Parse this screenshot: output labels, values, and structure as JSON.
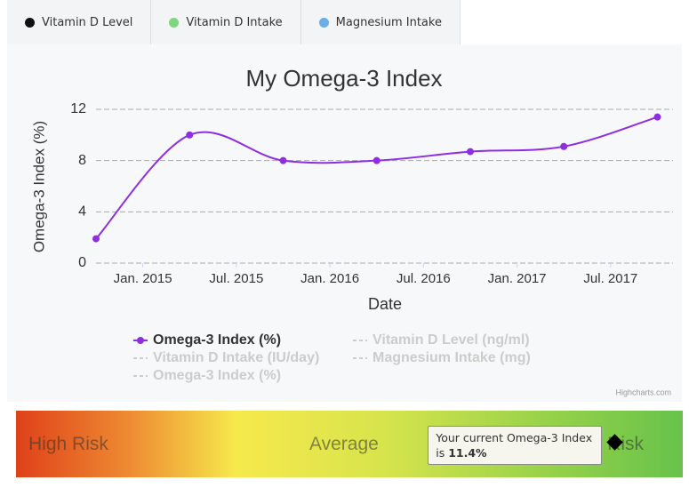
{
  "tabs": [
    {
      "label": "Vitamin D Level",
      "color": "#111111"
    },
    {
      "label": "Vitamin D Intake",
      "color": "#7ed67e"
    },
    {
      "label": "Magnesium Intake",
      "color": "#6aaee8"
    }
  ],
  "chart_data": {
    "type": "line",
    "title": "My Omega-3 Index",
    "x_label": "Date",
    "y_label": "Omega-3 Index (%)",
    "x": [
      "2014-10",
      "2015-04",
      "2015-10",
      "2016-04",
      "2016-10",
      "2017-04",
      "2017-10"
    ],
    "series": [
      {
        "name": "Omega-3 Index (%)",
        "color": "#8e2de2",
        "values": [
          1.9,
          10,
          8,
          8,
          8.7,
          9.1,
          11.4
        ]
      }
    ],
    "xlim": [
      "2014-10",
      "2017-11"
    ],
    "xticks": [
      {
        "value": "2015-01",
        "label": "Jan. 2015"
      },
      {
        "value": "2015-07",
        "label": "Jul. 2015"
      },
      {
        "value": "2016-01",
        "label": "Jan. 2016"
      },
      {
        "value": "2016-07",
        "label": "Jul. 2016"
      },
      {
        "value": "2017-01",
        "label": "Jan. 2017"
      },
      {
        "value": "2017-07",
        "label": "Jul. 2017"
      }
    ],
    "ylim": [
      0,
      12
    ],
    "yticks": [
      0,
      4,
      8,
      12
    ],
    "grid": true,
    "inactive_legend": [
      "Vitamin D Level (ng/ml)",
      "Vitamin D Intake (IU/day)",
      "Magnesium Intake (mg)",
      "Omega-3 Index (%)"
    ],
    "credits": "Highcharts.com"
  },
  "gauge": {
    "labels": [
      "High Risk",
      "Average",
      "Low Risk"
    ],
    "tooltip": "Your current Omega-3 Index is",
    "value": 11.4,
    "value_label": "11.4%",
    "range": [
      0,
      12.7
    ]
  }
}
